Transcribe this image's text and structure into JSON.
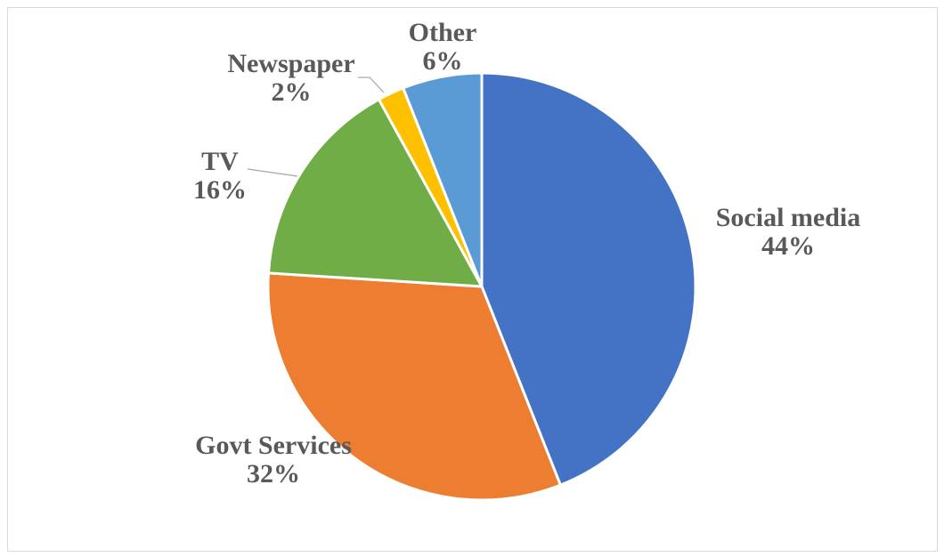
{
  "chart_data": {
    "type": "pie",
    "title": "",
    "slices": [
      {
        "label": "Social media",
        "value": 44,
        "value_label": "44%",
        "color": "#4472C4"
      },
      {
        "label": "Govt Services",
        "value": 32,
        "value_label": "32%",
        "color": "#ED7D31"
      },
      {
        "label": "TV",
        "value": 16,
        "value_label": "16%",
        "color": "#70AD47"
      },
      {
        "label": "Newspaper",
        "value": 2,
        "value_label": "2%",
        "color": "#FFC000"
      },
      {
        "label": "Other",
        "value": 6,
        "value_label": "6%",
        "color": "#5B9BD5"
      }
    ],
    "start_angle": "12 o'clock",
    "direction": "clockwise",
    "legend": "none",
    "data_labels": "category name and percentage"
  }
}
